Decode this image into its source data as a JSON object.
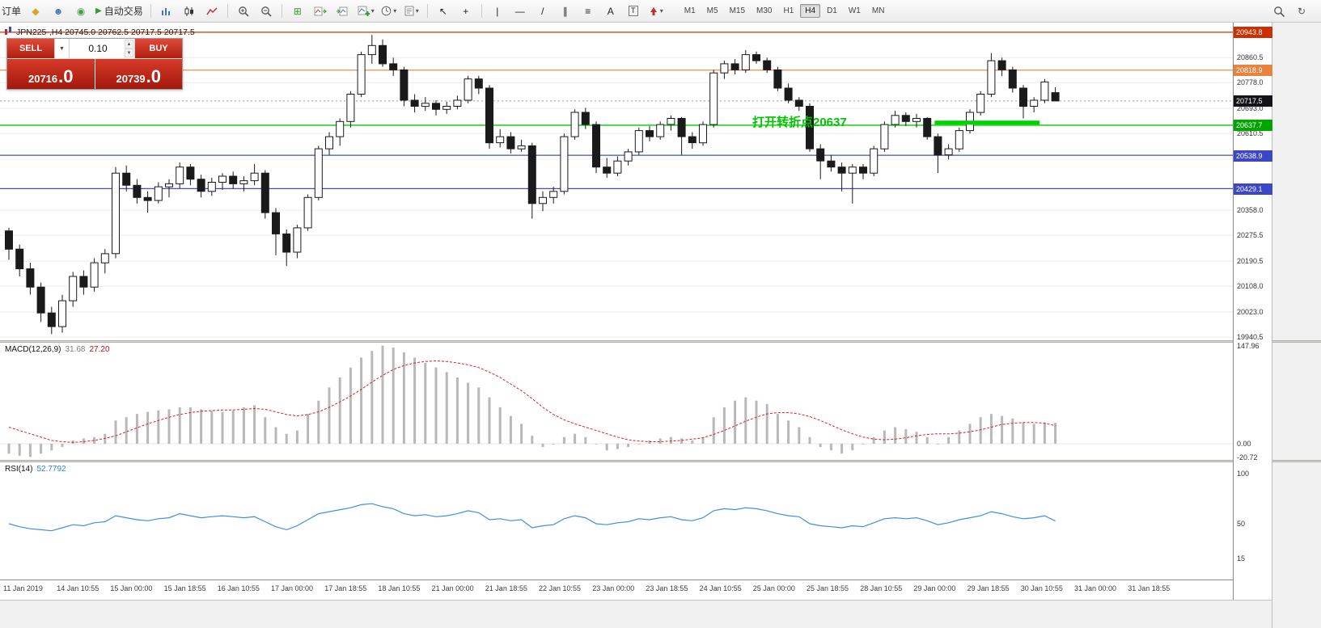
{
  "colors": {
    "bull": "#ffffff",
    "bear": "#1a1a1a",
    "macd_hist": "#b8b8b8",
    "macd_signal": "#e02020",
    "rsi_line": "#3f8fdf",
    "grid": "#ececec",
    "annotation_green": "#00c400"
  },
  "toolbar": {
    "items": [
      {
        "name": "new-order-button",
        "kind": "text",
        "label": "订单"
      },
      {
        "name": "mql-market-icon",
        "kind": "glyph",
        "glyph": "◆",
        "color": "#d9a520"
      },
      {
        "name": "community-icon",
        "kind": "glyph",
        "glyph": "☻",
        "color": "#4a7ab5"
      },
      {
        "name": "news-icon",
        "kind": "glyph",
        "glyph": "◉",
        "color": "#46a046"
      },
      {
        "name": "autotrading-button",
        "kind": "autotrading",
        "label": "自动交易"
      },
      {
        "kind": "sep"
      },
      {
        "name": "bar-chart-icon",
        "kind": "svg",
        "svg": "bars"
      },
      {
        "name": "candlestick-chart-icon",
        "kind": "svg",
        "svg": "candles"
      },
      {
        "name": "line-chart-icon",
        "kind": "svg",
        "svg": "line"
      },
      {
        "kind": "sep"
      },
      {
        "name": "zoom-in-icon",
        "kind": "svg",
        "svg": "zoomin"
      },
      {
        "name": "zoom-out-icon",
        "kind": "svg",
        "svg": "zoomout"
      },
      {
        "kind": "sep"
      },
      {
        "name": "tile-windows-icon",
        "kind": "glyph",
        "glyph": "⊞",
        "color": "#3c9632"
      },
      {
        "name": "auto-scroll-icon",
        "kind": "svg",
        "svg": "autoscroll"
      },
      {
        "name": "chart-shift-icon",
        "kind": "svg",
        "svg": "chartshift"
      },
      {
        "name": "indicators-button",
        "kind": "svg",
        "svg": "indicators",
        "caret": true
      },
      {
        "name": "periods-button",
        "kind": "svg",
        "svg": "clock",
        "caret": true
      },
      {
        "name": "templates-button",
        "kind": "svg",
        "svg": "template",
        "caret": true
      },
      {
        "kind": "sep"
      },
      {
        "name": "cursor-icon",
        "kind": "glyph",
        "glyph": "↖",
        "color": "#222"
      },
      {
        "name": "crosshair-icon",
        "kind": "glyph",
        "glyph": "+",
        "color": "#222"
      },
      {
        "kind": "sep"
      },
      {
        "name": "vertical-line-icon",
        "kind": "glyph",
        "glyph": "|",
        "color": "#222"
      },
      {
        "name": "horizontal-line-icon",
        "kind": "glyph",
        "glyph": "—",
        "color": "#222"
      },
      {
        "name": "trendline-icon",
        "kind": "glyph",
        "glyph": "/",
        "color": "#222"
      },
      {
        "name": "equidistant-channel-icon",
        "kind": "glyph",
        "glyph": "∥",
        "color": "#222"
      },
      {
        "name": "fibonacci-icon",
        "kind": "glyph",
        "glyph": "≡",
        "color": "#222"
      },
      {
        "name": "text-icon",
        "kind": "glyph",
        "glyph": "A",
        "color": "#222"
      },
      {
        "name": "text-label-icon",
        "kind": "glyph-box",
        "glyph": "T",
        "color": "#222"
      },
      {
        "name": "arrows-icon",
        "kind": "svg",
        "svg": "arrow",
        "caret": true
      }
    ],
    "timeframes": {
      "labels": [
        "M1",
        "M5",
        "M15",
        "M30",
        "H1",
        "H4",
        "D1",
        "W1",
        "MN"
      ],
      "active": "H4"
    },
    "right_items": [
      {
        "name": "search-icon",
        "kind": "svg",
        "svg": "search"
      },
      {
        "name": "refresh-icon",
        "kind": "glyph",
        "glyph": "↻",
        "color": "#555"
      }
    ]
  },
  "chart": {
    "ohlc_info": "JPN225-,H4  20745.0 20762.5 20717.5 20717.5",
    "annotation": "打开转折点20637",
    "trade_panel": {
      "sell_label": "SELL",
      "buy_label": "BUY",
      "volume": "0.10",
      "dropdown_glyph": "▼",
      "spin_up": "▲",
      "spin_down": "▼",
      "sell_price_main": "20716",
      "sell_price_frac": ".0",
      "buy_price_main": "20739",
      "buy_price_frac": ".0"
    },
    "price_axis": {
      "ticks": [
        {
          "text": "20860.5",
          "price": 20860.5
        },
        {
          "text": "20778.0",
          "price": 20778.0
        },
        {
          "text": "20693.0",
          "price": 20693.0
        },
        {
          "text": "20610.5",
          "price": 20610.5
        },
        {
          "text": "20525.5",
          "price": 20525.5
        },
        {
          "text": "20358.0",
          "price": 20358.0
        },
        {
          "text": "20275.5",
          "price": 20275.5
        },
        {
          "text": "20190.5",
          "price": 20190.5
        },
        {
          "text": "20108.0",
          "price": 20108.0
        },
        {
          "text": "20023.0",
          "price": 20023.0
        },
        {
          "text": "19940.5",
          "price": 19940.5
        }
      ],
      "badges": [
        {
          "text": "20943.8",
          "price": 20943.8,
          "bg": "#cc3000"
        },
        {
          "text": "20818.9",
          "price": 20818.9,
          "bg": "#e8823c"
        },
        {
          "text": "20717.5",
          "price": 20717.5,
          "bg": "#141418"
        },
        {
          "text": "20637.7",
          "price": 20637.7,
          "bg": "#00a500"
        },
        {
          "text": "20538.9",
          "price": 20538.9,
          "bg": "#3c46c8"
        },
        {
          "text": "20429.1",
          "price": 20429.1,
          "bg": "#3c46c8"
        }
      ]
    },
    "time_labels": [
      "11 Jan 2019",
      "14 Jan 10:55",
      "15 Jan 00:00",
      "15 Jan 18:55",
      "16 Jan 10:55",
      "17 Jan 00:00",
      "17 Jan 18:55",
      "18 Jan 10:55",
      "21 Jan 00:00",
      "21 Jan 18:55",
      "22 Jan 10:55",
      "23 Jan 00:00",
      "23 Jan 18:55",
      "24 Jan 10:55",
      "25 Jan 00:00",
      "25 Jan 18:55",
      "28 Jan 10:55",
      "29 Jan 00:00",
      "29 Jan 18:55",
      "30 Jan 10:55",
      "31 Jan 00:00",
      "31 Jan 18:55"
    ]
  },
  "macd": {
    "name": "MACD(12,26,9)",
    "value_main": "31.68",
    "value_signal": "27.20",
    "axis": [
      {
        "text": "147.96",
        "v": 147.96
      },
      {
        "text": "0.00",
        "v": 0
      },
      {
        "text": "-20.72",
        "v": -20.72
      }
    ]
  },
  "rsi": {
    "name": "RSI(14)",
    "value": "52.7792",
    "axis": [
      {
        "text": "100",
        "v": 100
      },
      {
        "text": "50",
        "v": 50
      },
      {
        "text": "15",
        "v": 15
      }
    ]
  },
  "chart_data": {
    "type": "candlestick",
    "symbol": "JPN225-",
    "timeframe": "H4",
    "price_range": [
      19930,
      20970
    ],
    "ohlc": [
      [
        20290,
        20300,
        20195,
        20230
      ],
      [
        20230,
        20245,
        20140,
        20165
      ],
      [
        20165,
        20185,
        20080,
        20105
      ],
      [
        20105,
        20120,
        19990,
        20020
      ],
      [
        20020,
        20040,
        19950,
        19975
      ],
      [
        19975,
        20080,
        19955,
        20060
      ],
      [
        20060,
        20155,
        20040,
        20140
      ],
      [
        20140,
        20160,
        20080,
        20105
      ],
      [
        20105,
        20200,
        20090,
        20185
      ],
      [
        20185,
        20230,
        20150,
        20215
      ],
      [
        20215,
        20500,
        20200,
        20480
      ],
      [
        20480,
        20505,
        20420,
        20440
      ],
      [
        20440,
        20460,
        20380,
        20400
      ],
      [
        20400,
        20420,
        20350,
        20390
      ],
      [
        20390,
        20450,
        20380,
        20435
      ],
      [
        20435,
        20460,
        20400,
        20445
      ],
      [
        20445,
        20515,
        20430,
        20500
      ],
      [
        20500,
        20510,
        20440,
        20460
      ],
      [
        20460,
        20475,
        20400,
        20420
      ],
      [
        20420,
        20465,
        20405,
        20450
      ],
      [
        20450,
        20480,
        20425,
        20470
      ],
      [
        20470,
        20485,
        20430,
        20445
      ],
      [
        20445,
        20470,
        20420,
        20455
      ],
      [
        20455,
        20510,
        20440,
        20480
      ],
      [
        20480,
        20490,
        20330,
        20350
      ],
      [
        20350,
        20365,
        20210,
        20280
      ],
      [
        20280,
        20295,
        20175,
        20220
      ],
      [
        20220,
        20310,
        20200,
        20300
      ],
      [
        20300,
        20410,
        20290,
        20400
      ],
      [
        20400,
        20570,
        20390,
        20560
      ],
      [
        20560,
        20615,
        20540,
        20600
      ],
      [
        20600,
        20660,
        20570,
        20650
      ],
      [
        20650,
        20750,
        20630,
        20740
      ],
      [
        20740,
        20880,
        20730,
        20870
      ],
      [
        20870,
        20935,
        20840,
        20900
      ],
      [
        20900,
        20920,
        20830,
        20840
      ],
      [
        20840,
        20860,
        20800,
        20820
      ],
      [
        20820,
        20830,
        20700,
        20720
      ],
      [
        20720,
        20740,
        20680,
        20700
      ],
      [
        20700,
        20730,
        20685,
        20710
      ],
      [
        20710,
        20720,
        20670,
        20690
      ],
      [
        20690,
        20715,
        20675,
        20700
      ],
      [
        20700,
        20735,
        20690,
        20720
      ],
      [
        20720,
        20800,
        20710,
        20790
      ],
      [
        20790,
        20800,
        20740,
        20760
      ],
      [
        20760,
        20770,
        20560,
        20580
      ],
      [
        20580,
        20625,
        20565,
        20600
      ],
      [
        20600,
        20615,
        20545,
        20560
      ],
      [
        20560,
        20590,
        20550,
        20570
      ],
      [
        20570,
        20580,
        20330,
        20380
      ],
      [
        20380,
        20420,
        20355,
        20400
      ],
      [
        20400,
        20435,
        20380,
        20420
      ],
      [
        20420,
        20610,
        20410,
        20600
      ],
      [
        20600,
        20690,
        20590,
        20680
      ],
      [
        20680,
        20695,
        20625,
        20640
      ],
      [
        20640,
        20650,
        20480,
        20500
      ],
      [
        20500,
        20530,
        20465,
        20480
      ],
      [
        20480,
        20535,
        20470,
        20520
      ],
      [
        20520,
        20560,
        20505,
        20550
      ],
      [
        20550,
        20630,
        20540,
        20620
      ],
      [
        20620,
        20635,
        20585,
        20600
      ],
      [
        20600,
        20650,
        20590,
        20640
      ],
      [
        20640,
        20670,
        20620,
        20660
      ],
      [
        20660,
        20665,
        20540,
        20600
      ],
      [
        20600,
        20615,
        20560,
        20580
      ],
      [
        20580,
        20650,
        20570,
        20640
      ],
      [
        20640,
        20820,
        20630,
        20810
      ],
      [
        20810,
        20850,
        20790,
        20840
      ],
      [
        20840,
        20855,
        20805,
        20820
      ],
      [
        20820,
        20885,
        20810,
        20870
      ],
      [
        20870,
        20880,
        20840,
        20850
      ],
      [
        20850,
        20860,
        20810,
        20820
      ],
      [
        20820,
        20830,
        20750,
        20760
      ],
      [
        20760,
        20775,
        20710,
        20720
      ],
      [
        20720,
        20730,
        20685,
        20700
      ],
      [
        20700,
        20710,
        20550,
        20560
      ],
      [
        20560,
        20575,
        20460,
        20520
      ],
      [
        20520,
        20540,
        20485,
        20500
      ],
      [
        20500,
        20515,
        20420,
        20480
      ],
      [
        20480,
        20510,
        20380,
        20500
      ],
      [
        20500,
        20510,
        20460,
        20480
      ],
      [
        20480,
        20570,
        20470,
        20560
      ],
      [
        20560,
        20650,
        20550,
        20640
      ],
      [
        20640,
        20685,
        20630,
        20670
      ],
      [
        20670,
        20680,
        20635,
        20650
      ],
      [
        20650,
        20675,
        20630,
        20660
      ],
      [
        20660,
        20665,
        20590,
        20600
      ],
      [
        20600,
        20610,
        20480,
        20540
      ],
      [
        20540,
        20575,
        20525,
        20560
      ],
      [
        20560,
        20630,
        20550,
        20620
      ],
      [
        20620,
        20690,
        20610,
        20680
      ],
      [
        20680,
        20750,
        20670,
        20740
      ],
      [
        20740,
        20875,
        20730,
        20850
      ],
      [
        20850,
        20860,
        20800,
        20820
      ],
      [
        20820,
        20830,
        20745,
        20760
      ],
      [
        20760,
        20770,
        20660,
        20700
      ],
      [
        20700,
        20730,
        20680,
        20720
      ],
      [
        20720,
        20790,
        20710,
        20780
      ],
      [
        20745,
        20762.5,
        20717.5,
        20717.5
      ]
    ],
    "hlines": [
      {
        "price": 20943.8,
        "color": "#d23200",
        "style": "solid",
        "width": 1.2
      },
      {
        "price": 20818.9,
        "color": "#e8823c",
        "style": "solid",
        "width": 1.2
      },
      {
        "price": 20717.5,
        "color": "#9a9a9a",
        "style": "dash",
        "width": 1
      },
      {
        "price": 20637.7,
        "color": "#00cc00",
        "style": "solid",
        "width": 1.4
      },
      {
        "price": 20538.9,
        "color": "#4050c8",
        "style": "solid",
        "width": 1.2
      },
      {
        "price": 20429.1,
        "color": "#4050c8",
        "style": "solid",
        "width": 1.2
      }
    ],
    "green_segment": {
      "price": 20646,
      "from_index": 87,
      "to_index": 96,
      "color": "#00d400",
      "width": 5
    },
    "macd": {
      "histogram": [
        -15,
        -18,
        -20,
        -15,
        -10,
        -5,
        5,
        8,
        10,
        15,
        35,
        40,
        45,
        48,
        50,
        52,
        55,
        55,
        52,
        50,
        48,
        50,
        55,
        58,
        40,
        25,
        15,
        20,
        45,
        65,
        85,
        100,
        115,
        130,
        140,
        148,
        145,
        138,
        130,
        122,
        115,
        108,
        100,
        92,
        85,
        70,
        55,
        42,
        30,
        12,
        -5,
        0,
        10,
        15,
        10,
        0,
        -10,
        -8,
        -5,
        0,
        5,
        8,
        10,
        8,
        5,
        10,
        40,
        55,
        65,
        70,
        65,
        60,
        45,
        35,
        25,
        10,
        -5,
        -10,
        -15,
        -10,
        0,
        10,
        20,
        25,
        22,
        18,
        10,
        0,
        10,
        20,
        30,
        40,
        45,
        42,
        38,
        32,
        30,
        32,
        31.68
      ],
      "signal": [
        25,
        20,
        15,
        10,
        5,
        3,
        2,
        3,
        5,
        8,
        12,
        18,
        24,
        30,
        35,
        40,
        44,
        47,
        49,
        50,
        51,
        51,
        52,
        53,
        52,
        48,
        44,
        42,
        44,
        48,
        55,
        63,
        72,
        82,
        93,
        103,
        112,
        118,
        122,
        124,
        125,
        124,
        122,
        119,
        115,
        108,
        100,
        90,
        80,
        68,
        55,
        44,
        36,
        30,
        25,
        20,
        15,
        10,
        6,
        4,
        3,
        3,
        4,
        5,
        7,
        9,
        14,
        20,
        27,
        34,
        40,
        45,
        47,
        47,
        45,
        41,
        35,
        28,
        21,
        15,
        10,
        7,
        6,
        7,
        9,
        12,
        14,
        15,
        15,
        16,
        18,
        21,
        25,
        29,
        31,
        32,
        32,
        31,
        27.2
      ]
    },
    "rsi": [
      50,
      47,
      45,
      44,
      43,
      46,
      49,
      48,
      51,
      52,
      58,
      56,
      54,
      53,
      55,
      56,
      60,
      58,
      56,
      57,
      58,
      57,
      56,
      57,
      52,
      47,
      44,
      48,
      54,
      60,
      62,
      64,
      66,
      69,
      70,
      67,
      65,
      60,
      58,
      59,
      57,
      58,
      60,
      63,
      61,
      54,
      55,
      53,
      54,
      46,
      48,
      49,
      55,
      58,
      56,
      50,
      49,
      51,
      52,
      55,
      54,
      56,
      57,
      54,
      53,
      56,
      63,
      65,
      64,
      66,
      65,
      63,
      60,
      58,
      57,
      50,
      48,
      47,
      46,
      48,
      47,
      51,
      55,
      56,
      55,
      56,
      53,
      49,
      51,
      54,
      56,
      58,
      62,
      60,
      57,
      55,
      56,
      58,
      52.78
    ]
  }
}
